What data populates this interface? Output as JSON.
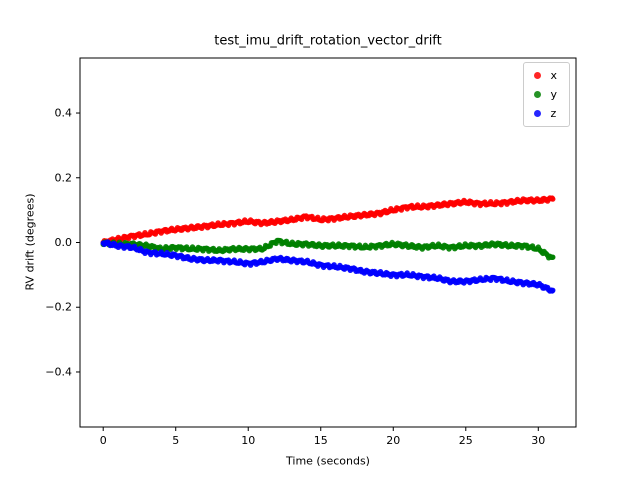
{
  "window": {
    "background": "#ffffff"
  },
  "chart_data": {
    "type": "scatter",
    "title": "test_imu_drift_rotation_vector_drift",
    "xlabel": "Time (seconds)",
    "ylabel": "RV drift (degrees)",
    "xlim": [
      -1.6,
      32.6
    ],
    "ylim": [
      -0.57,
      0.57
    ],
    "xticks": [
      0,
      5,
      10,
      15,
      20,
      25,
      30
    ],
    "xtick_labels": [
      "0",
      "5",
      "10",
      "15",
      "20",
      "25",
      "30"
    ],
    "yticks": [
      -0.4,
      -0.2,
      0.0,
      0.2,
      0.4
    ],
    "ytick_labels": [
      "−0.4",
      "−0.2",
      "0.0",
      "0.2",
      "0.4"
    ],
    "grid": false,
    "legend_position": "upper right",
    "x": [
      0,
      1,
      2,
      3,
      4,
      5,
      6,
      7,
      8,
      9,
      10,
      11,
      12,
      13,
      14,
      15,
      16,
      17,
      18,
      19,
      20,
      21,
      22,
      23,
      24,
      25,
      26,
      27,
      28,
      29,
      30,
      31
    ],
    "series": [
      {
        "name": "x",
        "color": "#ff0000",
        "values": [
          0.0,
          0.01,
          0.02,
          0.025,
          0.035,
          0.04,
          0.045,
          0.05,
          0.055,
          0.06,
          0.065,
          0.06,
          0.065,
          0.07,
          0.08,
          0.07,
          0.075,
          0.08,
          0.085,
          0.09,
          0.1,
          0.11,
          0.11,
          0.115,
          0.12,
          0.125,
          0.12,
          0.12,
          0.125,
          0.13,
          0.13,
          0.135
        ]
      },
      {
        "name": "y",
        "color": "#008000",
        "values": [
          0.0,
          -0.005,
          -0.005,
          -0.01,
          -0.02,
          -0.015,
          -0.02,
          -0.02,
          -0.025,
          -0.02,
          -0.02,
          -0.02,
          0.005,
          -0.005,
          -0.005,
          -0.01,
          -0.01,
          -0.01,
          -0.015,
          -0.01,
          -0.005,
          -0.01,
          -0.015,
          -0.01,
          -0.015,
          -0.01,
          -0.01,
          -0.005,
          -0.01,
          -0.01,
          -0.02,
          -0.05
        ]
      },
      {
        "name": "z",
        "color": "#0000ff",
        "values": [
          0.0,
          -0.01,
          -0.015,
          -0.03,
          -0.035,
          -0.04,
          -0.05,
          -0.055,
          -0.055,
          -0.06,
          -0.065,
          -0.06,
          -0.05,
          -0.055,
          -0.06,
          -0.07,
          -0.075,
          -0.08,
          -0.09,
          -0.095,
          -0.1,
          -0.1,
          -0.105,
          -0.11,
          -0.12,
          -0.12,
          -0.115,
          -0.11,
          -0.12,
          -0.125,
          -0.13,
          -0.15
        ]
      }
    ]
  }
}
